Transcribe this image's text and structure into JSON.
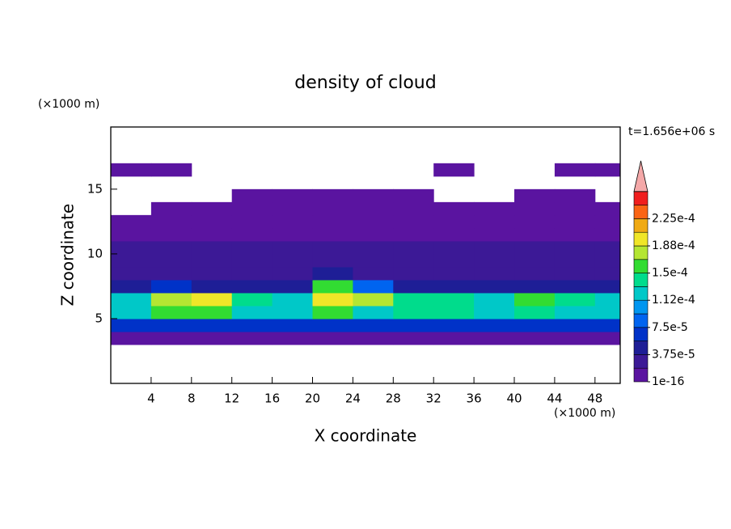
{
  "chart_data": {
    "type": "contour",
    "title": "density of cloud",
    "xlabel": "X coordinate",
    "ylabel": "Z coordinate",
    "xunit": "(×1000 m)",
    "yunit": "(×1000 m)",
    "time_label": "t=1.656e+06 s",
    "xlim": [
      0,
      50.5
    ],
    "ylim": [
      0,
      19.8
    ],
    "xticks": [
      4,
      8,
      12,
      16,
      20,
      24,
      28,
      32,
      36,
      40,
      44,
      48
    ],
    "yticks": [
      5,
      10,
      15
    ],
    "x": [
      2,
      6,
      10,
      14,
      18,
      22,
      26,
      30,
      34,
      38,
      42,
      46,
      50
    ],
    "y": [
      3.5,
      4.5,
      5.5,
      6.5,
      7.5,
      8.5,
      9.5,
      10.5,
      11.5,
      12.5,
      13.5,
      14.5,
      15.5,
      16.5
    ],
    "z": [
      [
        1e-06,
        1e-06,
        1e-06,
        1e-06,
        1e-06,
        1e-06,
        1e-06,
        1e-06,
        1e-06,
        1e-06,
        1e-06,
        1e-06,
        1e-06
      ],
      [
        6e-05,
        6e-05,
        6.5e-05,
        6e-05,
        6e-05,
        6.5e-05,
        6e-05,
        6e-05,
        6e-05,
        6e-05,
        6e-05,
        6e-05,
        6e-05
      ],
      [
        0.00012,
        0.00015,
        0.00015,
        0.00012,
        0.00012,
        0.00015,
        0.00013,
        0.00014,
        0.00014,
        0.00013,
        0.00014,
        0.00013,
        0.00013
      ],
      [
        0.00012,
        0.00018,
        0.00019,
        0.00014,
        0.00013,
        0.00019,
        0.00017,
        0.00014,
        0.00014,
        0.00013,
        0.00015,
        0.00014,
        0.00013
      ],
      [
        4e-05,
        6e-05,
        5e-05,
        4e-05,
        5e-05,
        0.00016,
        9e-05,
        4e-05,
        4e-05,
        4e-05,
        4e-05,
        4e-05,
        4e-05
      ],
      [
        3e-05,
        3e-05,
        3e-05,
        3e-05,
        3e-05,
        4e-05,
        3e-05,
        3e-05,
        3e-05,
        3e-05,
        3e-05,
        3e-05,
        3e-05
      ],
      [
        2.5e-05,
        2.5e-05,
        2.5e-05,
        2.5e-05,
        2.5e-05,
        2.5e-05,
        2.5e-05,
        2.5e-05,
        2.5e-05,
        2.5e-05,
        2.5e-05,
        2.5e-05,
        2.5e-05
      ],
      [
        2e-05,
        2e-05,
        2e-05,
        2e-05,
        2e-05,
        2e-05,
        2e-05,
        2e-05,
        2e-05,
        2e-05,
        2e-05,
        2e-05,
        2e-05
      ],
      [
        1.5e-05,
        1.5e-05,
        1.5e-05,
        1.5e-05,
        1.5e-05,
        1.5e-05,
        1.5e-05,
        1.5e-05,
        1.5e-05,
        1.5e-05,
        1.5e-05,
        1.5e-05,
        1.5e-05
      ],
      [
        8e-06,
        8e-06,
        8e-06,
        8e-06,
        8e-06,
        8e-06,
        8e-06,
        8e-06,
        8e-06,
        8e-06,
        8e-06,
        8e-06,
        8e-06
      ],
      [
        null,
        5e-06,
        5e-06,
        5e-06,
        5e-06,
        5e-06,
        5e-06,
        5e-06,
        5e-06,
        5e-06,
        5e-06,
        5e-06,
        5e-06
      ],
      [
        null,
        null,
        null,
        3e-06,
        3e-06,
        3e-06,
        3e-06,
        3e-06,
        null,
        null,
        3e-06,
        3e-06,
        null
      ],
      [
        null,
        null,
        null,
        null,
        null,
        null,
        null,
        null,
        null,
        null,
        null,
        null,
        null
      ],
      [
        2e-06,
        2e-06,
        null,
        null,
        null,
        null,
        null,
        null,
        2e-06,
        null,
        null,
        2e-06,
        2e-06
      ]
    ],
    "levels": [
      1e-16,
      1.875e-05,
      3.75e-05,
      5.625e-05,
      7.5e-05,
      9.375e-05,
      0.0001125,
      0.00013125,
      0.00015,
      0.00016875,
      0.0001875,
      0.00020625,
      0.000225,
      0.00024375
    ],
    "colors": [
      "#5a14a0",
      "#3c1996",
      "#1e1e96",
      "#0032c8",
      "#0064f0",
      "#0096f0",
      "#00c8c8",
      "#00dc8c",
      "#32dc32",
      "#b4e632",
      "#f0e628",
      "#f0aa14",
      "#fa6414",
      "#f01e1e"
    ],
    "over_color": "#f4a8a8",
    "cticks": [
      {
        "value": 1e-16,
        "label": "1e-16"
      },
      {
        "value": 3.75e-05,
        "label": "3.75e-5"
      },
      {
        "value": 7.5e-05,
        "label": "7.5e-5"
      },
      {
        "value": 0.0001125,
        "label": "1.12e-4"
      },
      {
        "value": 0.00015,
        "label": "1.5e-4"
      },
      {
        "value": 0.0001875,
        "label": "1.88e-4"
      },
      {
        "value": 0.000225,
        "label": "2.25e-4"
      }
    ]
  }
}
